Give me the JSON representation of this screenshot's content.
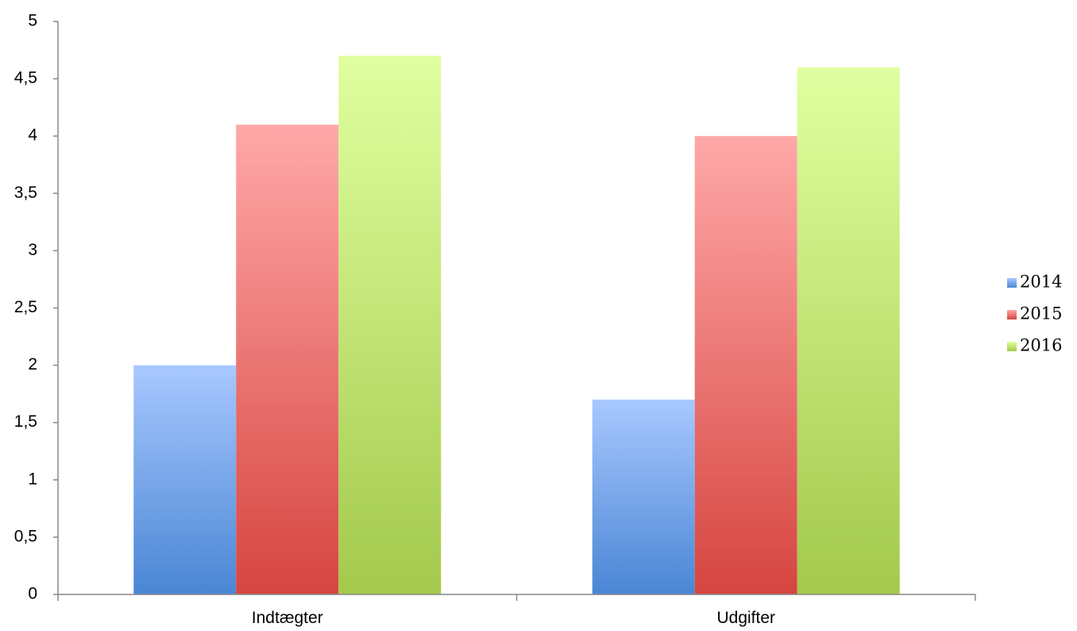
{
  "chart_data": {
    "type": "bar",
    "title": "",
    "xlabel": "",
    "ylabel": "",
    "categories": [
      "Indtægter",
      "Udgifter"
    ],
    "series": [
      {
        "name": "2014",
        "values": [
          2.0,
          1.7
        ],
        "color": "#4a86d4",
        "color_light": "#a8c8ff"
      },
      {
        "name": "2015",
        "values": [
          4.1,
          4.0
        ],
        "color": "#d64540",
        "color_light": "#ffa8a8"
      },
      {
        "name": "2016",
        "values": [
          4.7,
          4.6
        ],
        "color": "#a3c94c",
        "color_light": "#e0ffa0"
      }
    ],
    "ylim": [
      0,
      5
    ],
    "ytick_values": [
      0,
      0.5,
      1,
      1.5,
      2,
      2.5,
      3,
      3.5,
      4,
      4.5,
      5
    ],
    "ytick_labels": [
      "0",
      "0,5",
      "1",
      "1,5",
      "2",
      "2,5",
      "3",
      "3,5",
      "4",
      "4,5",
      "5"
    ],
    "grid": false,
    "legend_position": "right"
  }
}
